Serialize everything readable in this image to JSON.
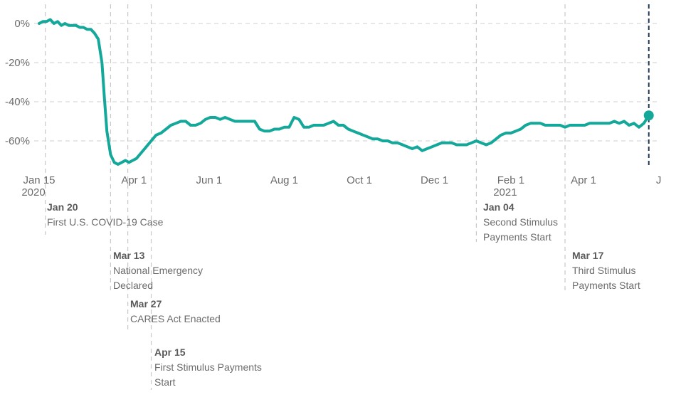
{
  "chart_data": {
    "type": "line",
    "title": "",
    "xlabel": "",
    "ylabel": "",
    "x_axis": {
      "type": "date",
      "range": [
        "2020-01-15",
        "2021-05-25"
      ],
      "ticks": [
        {
          "date": "2020-01-15",
          "label": "Jan 15",
          "sublabel": "2020"
        },
        {
          "date": "2020-04-01",
          "label": "Apr 1",
          "sublabel": ""
        },
        {
          "date": "2020-06-01",
          "label": "Jun 1",
          "sublabel": ""
        },
        {
          "date": "2020-08-01",
          "label": "Aug 1",
          "sublabel": ""
        },
        {
          "date": "2020-10-01",
          "label": "Oct 1",
          "sublabel": ""
        },
        {
          "date": "2020-12-01",
          "label": "Dec 1",
          "sublabel": ""
        },
        {
          "date": "2021-02-01",
          "label": "Feb 1",
          "sublabel": "2021"
        },
        {
          "date": "2021-04-01",
          "label": "Apr 1",
          "sublabel": ""
        },
        {
          "date": "2021-06-01",
          "label": "J",
          "sublabel": ""
        }
      ]
    },
    "y_axis": {
      "unit": "%",
      "range": [
        -74,
        3
      ],
      "ticks": [
        {
          "value": 0,
          "label": "0%"
        },
        {
          "value": -20,
          "label": "-20%"
        },
        {
          "value": -40,
          "label": "-40%"
        },
        {
          "value": -60,
          "label": "-60%"
        }
      ],
      "grid": true
    },
    "series": [
      {
        "color": "#14a89a",
        "points": [
          [
            "2020-01-15",
            0
          ],
          [
            "2020-01-18",
            1
          ],
          [
            "2020-01-21",
            1
          ],
          [
            "2020-01-24",
            2
          ],
          [
            "2020-01-27",
            0
          ],
          [
            "2020-01-30",
            1
          ],
          [
            "2020-02-02",
            -1
          ],
          [
            "2020-02-05",
            0
          ],
          [
            "2020-02-08",
            -1
          ],
          [
            "2020-02-11",
            -1
          ],
          [
            "2020-02-14",
            -1
          ],
          [
            "2020-02-17",
            -2
          ],
          [
            "2020-02-20",
            -2
          ],
          [
            "2020-02-23",
            -3
          ],
          [
            "2020-02-26",
            -3
          ],
          [
            "2020-02-29",
            -5
          ],
          [
            "2020-03-03",
            -8
          ],
          [
            "2020-03-06",
            -20
          ],
          [
            "2020-03-08",
            -38
          ],
          [
            "2020-03-10",
            -55
          ],
          [
            "2020-03-13",
            -67
          ],
          [
            "2020-03-16",
            -71
          ],
          [
            "2020-03-19",
            -72
          ],
          [
            "2020-03-22",
            -71
          ],
          [
            "2020-03-25",
            -70
          ],
          [
            "2020-03-28",
            -71
          ],
          [
            "2020-03-31",
            -70
          ],
          [
            "2020-04-03",
            -69
          ],
          [
            "2020-04-07",
            -66
          ],
          [
            "2020-04-11",
            -63
          ],
          [
            "2020-04-15",
            -60
          ],
          [
            "2020-04-19",
            -57
          ],
          [
            "2020-04-23",
            -56
          ],
          [
            "2020-04-27",
            -54
          ],
          [
            "2020-05-01",
            -52
          ],
          [
            "2020-05-05",
            -51
          ],
          [
            "2020-05-09",
            -50
          ],
          [
            "2020-05-13",
            -50
          ],
          [
            "2020-05-17",
            -52
          ],
          [
            "2020-05-21",
            -52
          ],
          [
            "2020-05-25",
            -51
          ],
          [
            "2020-05-29",
            -49
          ],
          [
            "2020-06-02",
            -48
          ],
          [
            "2020-06-06",
            -48
          ],
          [
            "2020-06-10",
            -49
          ],
          [
            "2020-06-14",
            -48
          ],
          [
            "2020-06-18",
            -49
          ],
          [
            "2020-06-22",
            -50
          ],
          [
            "2020-06-26",
            -50
          ],
          [
            "2020-06-30",
            -50
          ],
          [
            "2020-07-04",
            -50
          ],
          [
            "2020-07-08",
            -50
          ],
          [
            "2020-07-12",
            -54
          ],
          [
            "2020-07-16",
            -55
          ],
          [
            "2020-07-20",
            -55
          ],
          [
            "2020-07-24",
            -54
          ],
          [
            "2020-07-28",
            -54
          ],
          [
            "2020-08-01",
            -53
          ],
          [
            "2020-08-05",
            -53
          ],
          [
            "2020-08-09",
            -48
          ],
          [
            "2020-08-13",
            -49
          ],
          [
            "2020-08-17",
            -53
          ],
          [
            "2020-08-21",
            -53
          ],
          [
            "2020-08-25",
            -52
          ],
          [
            "2020-08-29",
            -52
          ],
          [
            "2020-09-02",
            -52
          ],
          [
            "2020-09-06",
            -51
          ],
          [
            "2020-09-10",
            -50
          ],
          [
            "2020-09-14",
            -52
          ],
          [
            "2020-09-18",
            -52
          ],
          [
            "2020-09-22",
            -54
          ],
          [
            "2020-09-26",
            -55
          ],
          [
            "2020-09-30",
            -56
          ],
          [
            "2020-10-04",
            -57
          ],
          [
            "2020-10-08",
            -58
          ],
          [
            "2020-10-12",
            -59
          ],
          [
            "2020-10-16",
            -59
          ],
          [
            "2020-10-20",
            -60
          ],
          [
            "2020-10-24",
            -60
          ],
          [
            "2020-10-28",
            -61
          ],
          [
            "2020-11-01",
            -61
          ],
          [
            "2020-11-05",
            -62
          ],
          [
            "2020-11-09",
            -63
          ],
          [
            "2020-11-13",
            -64
          ],
          [
            "2020-11-17",
            -63
          ],
          [
            "2020-11-21",
            -65
          ],
          [
            "2020-11-25",
            -64
          ],
          [
            "2020-11-29",
            -63
          ],
          [
            "2020-12-03",
            -62
          ],
          [
            "2020-12-07",
            -61
          ],
          [
            "2020-12-11",
            -61
          ],
          [
            "2020-12-15",
            -61
          ],
          [
            "2020-12-19",
            -62
          ],
          [
            "2020-12-23",
            -62
          ],
          [
            "2020-12-27",
            -62
          ],
          [
            "2020-12-31",
            -61
          ],
          [
            "2021-01-04",
            -60
          ],
          [
            "2021-01-08",
            -61
          ],
          [
            "2021-01-12",
            -62
          ],
          [
            "2021-01-16",
            -61
          ],
          [
            "2021-01-20",
            -59
          ],
          [
            "2021-01-24",
            -57
          ],
          [
            "2021-01-28",
            -56
          ],
          [
            "2021-02-01",
            -56
          ],
          [
            "2021-02-05",
            -55
          ],
          [
            "2021-02-09",
            -54
          ],
          [
            "2021-02-13",
            -52
          ],
          [
            "2021-02-17",
            -51
          ],
          [
            "2021-02-21",
            -51
          ],
          [
            "2021-02-25",
            -51
          ],
          [
            "2021-03-01",
            -52
          ],
          [
            "2021-03-05",
            -52
          ],
          [
            "2021-03-09",
            -52
          ],
          [
            "2021-03-13",
            -52
          ],
          [
            "2021-03-17",
            -53
          ],
          [
            "2021-03-21",
            -52
          ],
          [
            "2021-03-25",
            -52
          ],
          [
            "2021-03-29",
            -52
          ],
          [
            "2021-04-02",
            -52
          ],
          [
            "2021-04-06",
            -51
          ],
          [
            "2021-04-10",
            -51
          ],
          [
            "2021-04-14",
            -51
          ],
          [
            "2021-04-18",
            -51
          ],
          [
            "2021-04-22",
            -51
          ],
          [
            "2021-04-26",
            -50
          ],
          [
            "2021-04-30",
            -51
          ],
          [
            "2021-05-04",
            -50
          ],
          [
            "2021-05-08",
            -52
          ],
          [
            "2021-05-12",
            -51
          ],
          [
            "2021-05-16",
            -53
          ],
          [
            "2021-05-20",
            -51
          ],
          [
            "2021-05-24",
            -47
          ]
        ]
      }
    ],
    "latest_point": {
      "date": "2021-05-24",
      "value": -47
    },
    "annotations": [
      {
        "date": "2020-01-20",
        "title": "Jan 20",
        "lines": [
          "First U.S. COVID-19 Case"
        ]
      },
      {
        "date": "2020-03-13",
        "title": "Mar 13",
        "lines": [
          "National Emergency",
          "Declared"
        ]
      },
      {
        "date": "2020-03-27",
        "title": "Mar 27",
        "lines": [
          "CARES Act Enacted"
        ]
      },
      {
        "date": "2020-04-15",
        "title": "Apr 15",
        "lines": [
          "First Stimulus Payments",
          "Start"
        ]
      },
      {
        "date": "2021-01-04",
        "title": "Jan 04",
        "lines": [
          "Second Stimulus",
          "Payments Start"
        ]
      },
      {
        "date": "2021-03-17",
        "title": "Mar 17",
        "lines": [
          "Third Stimulus",
          "Payments Start"
        ]
      }
    ],
    "colors": {
      "line": "#14a89a",
      "marker": "#14a89a",
      "latest_line": "#1f3a5a",
      "grid": "#cfcfcf",
      "annotation_line": "#c8c8c8"
    }
  }
}
